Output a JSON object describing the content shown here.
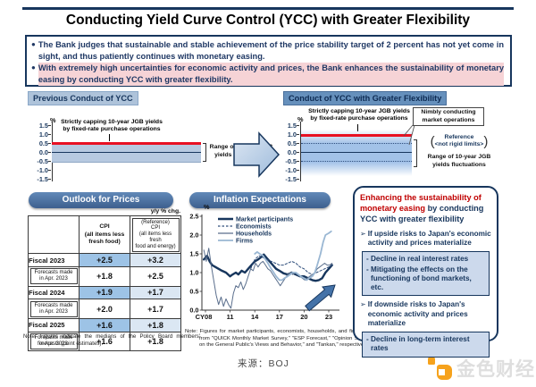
{
  "page": {
    "title": "Conducting Yield Curve Control (YCC) with Greater Flexibility",
    "source": "来源：BOJ",
    "watermark": "金色财经"
  },
  "summary": {
    "bullet_mark": "●",
    "bullet1": "The Bank judges that sustainable and stable achievement of the price stability target of 2 percent has not yet come in sight, and thus patiently continues with monetary easing.",
    "bullet2": "With extremely high uncertainties for economic activity and prices, the Bank enhances the sustainability of monetary easing by conducting YCC with greater flexibility."
  },
  "ycc_axis": {
    "unit": "%",
    "ticks": [
      "1.5",
      "1.0",
      "0.5",
      "0.0",
      "-0.5",
      "-1.0",
      "-1.5"
    ]
  },
  "previous_ycc": {
    "header": "Previous Conduct of YCC",
    "cap_note": "Strictly capping 10-year JGB yields\nby fixed-rate purchase operations",
    "range_note": "Range of 10-year JGB\nyields fluctuations",
    "cap_level": "0.5",
    "fluctuation_range": "-0.5 to +0.5"
  },
  "new_ycc": {
    "header": "Conduct of YCC with Greater Flexibility",
    "cap_note": "Strictly capping 10-year JGB yields\nby fixed-rate purchase operations",
    "nimbly_note": "Nimbly conducting\nmarket operations",
    "reference_label": "Reference\n<not rigid limits>",
    "range_note": "Range of 10-year JGB\nyields fluctuations",
    "cap_level": "1.0",
    "reference_range": "-0.5 to +0.5"
  },
  "outlook": {
    "header": "Outlook for Prices",
    "unit_note": "y/y % chg.",
    "cpi_header": "CPI\n(all items less\nfresh food)",
    "ref_header": "(Reference)\nCPI\n(all items less fresh\nfood and energy)",
    "rows": [
      {
        "label": "Fiscal 2023",
        "cpi": "+2.5",
        "ref": "+3.2"
      },
      {
        "label": "Forecasts made\nin Apr. 2023",
        "cpi": "+1.8",
        "ref": "+2.5"
      },
      {
        "label": "Fiscal 2024",
        "cpi": "+1.9",
        "ref": "+1.7"
      },
      {
        "label": "Forecasts made\nin Apr. 2023",
        "cpi": "+2.0",
        "ref": "+1.7"
      },
      {
        "label": "Fiscal 2025",
        "cpi": "+1.6",
        "ref": "+1.8"
      },
      {
        "label": "Forecasts made\nin Apr. 2023",
        "cpi": "+1.6",
        "ref": "+1.8"
      }
    ],
    "note": "Note: Figures indicate the medians of the Policy Board members' forecasts (point estimates)."
  },
  "inflation": {
    "header": "Inflation Expectations",
    "note": "Note: Figures for market participants, economists, households, and firms are from \"QUICK Monthly Market Survey,\" \"ESP Forecast,\" \"Opinion Survey on the General Public's Views and Behavior,\" and \"Tankan,\" respectively."
  },
  "chart_data": {
    "type": "line",
    "title": "Inflation Expectations",
    "ylabel": "%",
    "ylim": [
      0,
      2.5
    ],
    "yticks": [
      "0.0",
      "0.5",
      "1.0",
      "1.5",
      "2.0",
      "2.5"
    ],
    "xticks": [
      "CY08",
      "11",
      "14",
      "17",
      "20",
      "23"
    ],
    "xtick_years": [
      2008,
      2011,
      2014,
      2017,
      2020,
      2023
    ],
    "legend_position": "top-left",
    "series": [
      {
        "name": "Market participants",
        "color": "#17365d",
        "width": 2.4,
        "dash": null,
        "x": [
          2007.8,
          2008.2,
          2008.5,
          2008.8,
          2009.2,
          2009.6,
          2010,
          2010.5,
          2011,
          2011.3,
          2011.7,
          2012,
          2012.4,
          2012.8,
          2013.2,
          2013.6,
          2014,
          2014.4,
          2014.8,
          2015.1,
          2015.4,
          2015.8,
          2016.2,
          2016.6,
          2017,
          2017.5,
          2018,
          2018.5,
          2019,
          2019.5,
          2020,
          2020.5,
          2021,
          2021.4,
          2021.8,
          2022.2,
          2022.6,
          2023,
          2023.4
        ],
        "y": [
          1.35,
          1.45,
          1.3,
          1.2,
          1.15,
          1.1,
          1.05,
          1.0,
          0.9,
          0.95,
          1.0,
          0.95,
          1.05,
          1.0,
          1.1,
          1.2,
          1.3,
          1.35,
          1.42,
          1.48,
          1.4,
          1.3,
          1.2,
          1.1,
          1.05,
          0.98,
          0.95,
          1.0,
          0.95,
          0.9,
          0.9,
          0.85,
          0.8,
          0.78,
          0.8,
          0.85,
          1.0,
          1.1,
          1.2
        ]
      },
      {
        "name": "Economists",
        "color": "#2e4d7b",
        "width": 1,
        "dash": "2.5,2",
        "x": [
          2013.5,
          2014,
          2014.5,
          2015,
          2015.5,
          2016,
          2016.5,
          2017,
          2017.5,
          2018,
          2018.5,
          2019,
          2019.5,
          2020,
          2020.5,
          2021,
          2021.5,
          2022,
          2022.5,
          2023,
          2023.4
        ],
        "y": [
          1.1,
          1.35,
          1.45,
          1.4,
          1.35,
          1.3,
          1.25,
          1.2,
          1.2,
          1.25,
          1.3,
          1.25,
          1.15,
          1.1,
          1.0,
          0.95,
          1.0,
          1.05,
          1.1,
          1.15,
          1.2
        ]
      },
      {
        "name": "Households",
        "color": "#5a6e8c",
        "width": 1,
        "dash": null,
        "x": [
          2007.8,
          2008.1,
          2008.4,
          2008.7,
          2009,
          2009.3,
          2009.6,
          2009.9,
          2010.2,
          2010.5,
          2010.8,
          2011.1,
          2011.4,
          2011.7,
          2012,
          2012.3,
          2012.6,
          2012.9,
          2013.2,
          2013.5,
          2013.8,
          2014.1,
          2014.4,
          2014.7,
          2015,
          2015.3,
          2015.6,
          2015.9,
          2016.2,
          2016.5,
          2016.8,
          2017.1,
          2017.4,
          2017.7,
          2018,
          2018.3,
          2018.6,
          2018.9,
          2019.2,
          2019.5,
          2019.8,
          2020.1,
          2020.4,
          2020.7,
          2021,
          2021.3,
          2021.6,
          2021.9,
          2022.2,
          2022.5,
          2022.8,
          2023.1,
          2023.4
        ],
        "y": [
          1.6,
          1.3,
          1.65,
          1.2,
          0.8,
          0.4,
          0.15,
          0.35,
          0.1,
          0.3,
          0.15,
          0.05,
          0.45,
          0.65,
          0.6,
          0.75,
          0.55,
          0.7,
          0.9,
          1.1,
          1.05,
          1.25,
          1.15,
          1.25,
          1.3,
          1.2,
          1.1,
          1.05,
          0.95,
          0.85,
          0.75,
          0.65,
          0.75,
          0.85,
          0.95,
          1.0,
          0.95,
          1.0,
          0.95,
          0.9,
          0.85,
          0.8,
          0.85,
          0.9,
          0.95,
          1.0,
          1.1,
          1.15,
          1.2,
          1.25,
          1.2,
          1.2,
          1.25
        ]
      },
      {
        "name": "Firms",
        "color": "#9ab7d3",
        "width": 1.8,
        "dash": null,
        "x": [
          2014,
          2014.3,
          2014.6,
          2015,
          2015.3,
          2015.6,
          2016,
          2016.3,
          2016.6,
          2017,
          2017.3,
          2017.6,
          2018,
          2018.3,
          2018.6,
          2019,
          2019.3,
          2019.6,
          2020,
          2020.3,
          2020.6,
          2021,
          2021.3,
          2021.6,
          2022,
          2022.3,
          2022.6,
          2023,
          2023.3
        ],
        "y": [
          1.5,
          1.55,
          1.5,
          1.45,
          1.35,
          1.25,
          1.1,
          1.0,
          0.9,
          0.8,
          0.8,
          0.85,
          0.9,
          0.95,
          1.0,
          1.0,
          0.95,
          0.9,
          0.85,
          0.8,
          0.85,
          0.9,
          1.0,
          1.2,
          1.5,
          1.8,
          2.0,
          2.05,
          2.1
        ]
      }
    ]
  },
  "flex_box": {
    "title_red": "Enhancing the sustainability of monetary easing",
    "title_rest": " by conducting YCC with greater flexibility",
    "trigger_mark": "➢",
    "upside_trigger": "If upside risks to Japan's economic activity and prices materialize",
    "upside_effects": [
      "- Decline in real interest rates",
      "- Mitigating the effects on the functioning of bond markets, etc."
    ],
    "downside_trigger": "If downside risks to Japan's economic activity and prices materialize",
    "downside_effects": [
      "- Decline in long-term interest rates"
    ]
  }
}
